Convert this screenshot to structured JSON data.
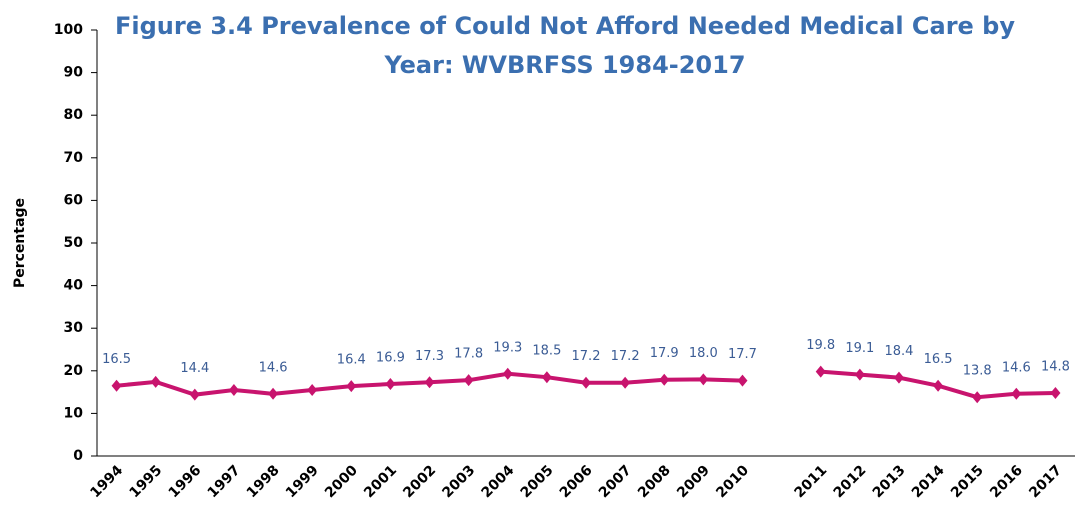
{
  "chart_data": {
    "type": "line",
    "title": [
      "Figure 3.4  Prevalence of Could Not Afford Needed Medical Care by",
      "Year: WVBRFSS 1984-2017"
    ],
    "y_label": "Percentage",
    "categories": [
      "1994",
      "1995",
      "1996",
      "1997",
      "1998",
      "1999",
      "2000",
      "2001",
      "2002",
      "2003",
      "2004",
      "2005",
      "2006",
      "2007",
      "2008",
      "2009",
      "2010",
      null,
      "2011",
      "2012",
      "2013",
      "2014",
      "2015",
      "2016",
      "2017"
    ],
    "series": [
      {
        "name": "Could Not Afford Needed Medical Care",
        "color": "#c8146e",
        "values": [
          16.5,
          17.4,
          14.4,
          15.5,
          14.6,
          15.5,
          16.4,
          16.9,
          17.3,
          17.8,
          19.3,
          18.5,
          17.2,
          17.2,
          17.9,
          18.0,
          17.7,
          null,
          19.8,
          19.1,
          18.4,
          16.5,
          13.8,
          14.6,
          14.8
        ],
        "value_labels": [
          "16.5",
          null,
          "14.4",
          null,
          "14.6",
          null,
          "16.4",
          "16.9",
          "17.3",
          "17.8",
          "19.3",
          "18.5",
          "17.2",
          "17.2",
          "17.9",
          "18.0",
          "17.7",
          null,
          "19.8",
          "19.1",
          "18.4",
          "16.5",
          "13.8",
          "14.6",
          "14.8"
        ]
      }
    ],
    "ylim": [
      0,
      100
    ],
    "yticks": [
      0,
      10,
      20,
      30,
      40,
      50,
      60,
      70,
      80,
      90,
      100
    ],
    "grid": false
  }
}
